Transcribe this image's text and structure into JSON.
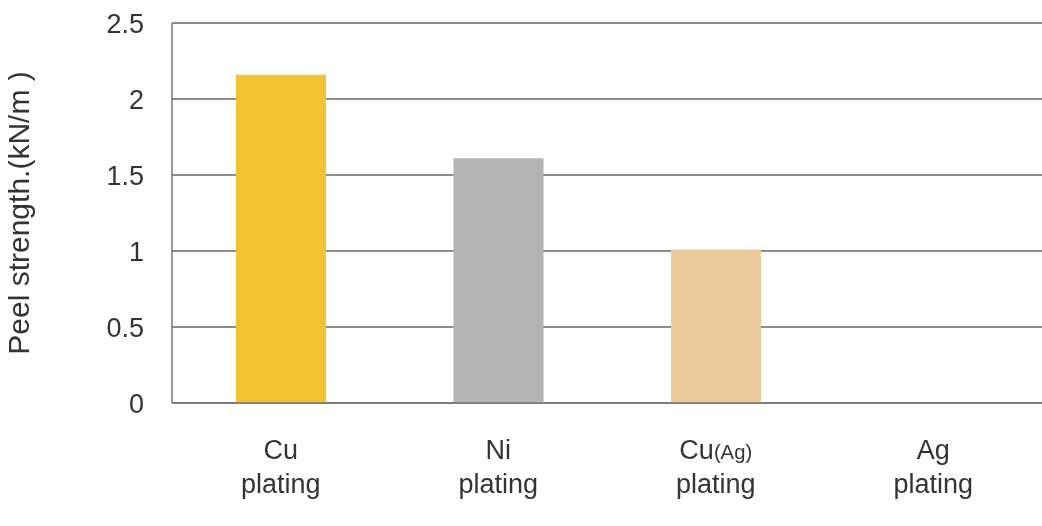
{
  "chart_data": {
    "type": "bar",
    "ylabel": "Peel strength.(kN/m )",
    "categories": [
      "Cu plating",
      "Ni plating",
      "Cu$_{(Ag)}$ plating",
      "Ag plating"
    ],
    "values": [
      2.16,
      1.61,
      1.01,
      null
    ],
    "colors": [
      "#f2c232",
      "#b4b4b4",
      "#eccb9a",
      "#cccccc"
    ],
    "ylim": [
      0,
      2.5
    ],
    "yticks": [
      0,
      0.5,
      1,
      1.5,
      2,
      2.5
    ],
    "grid": "y"
  }
}
